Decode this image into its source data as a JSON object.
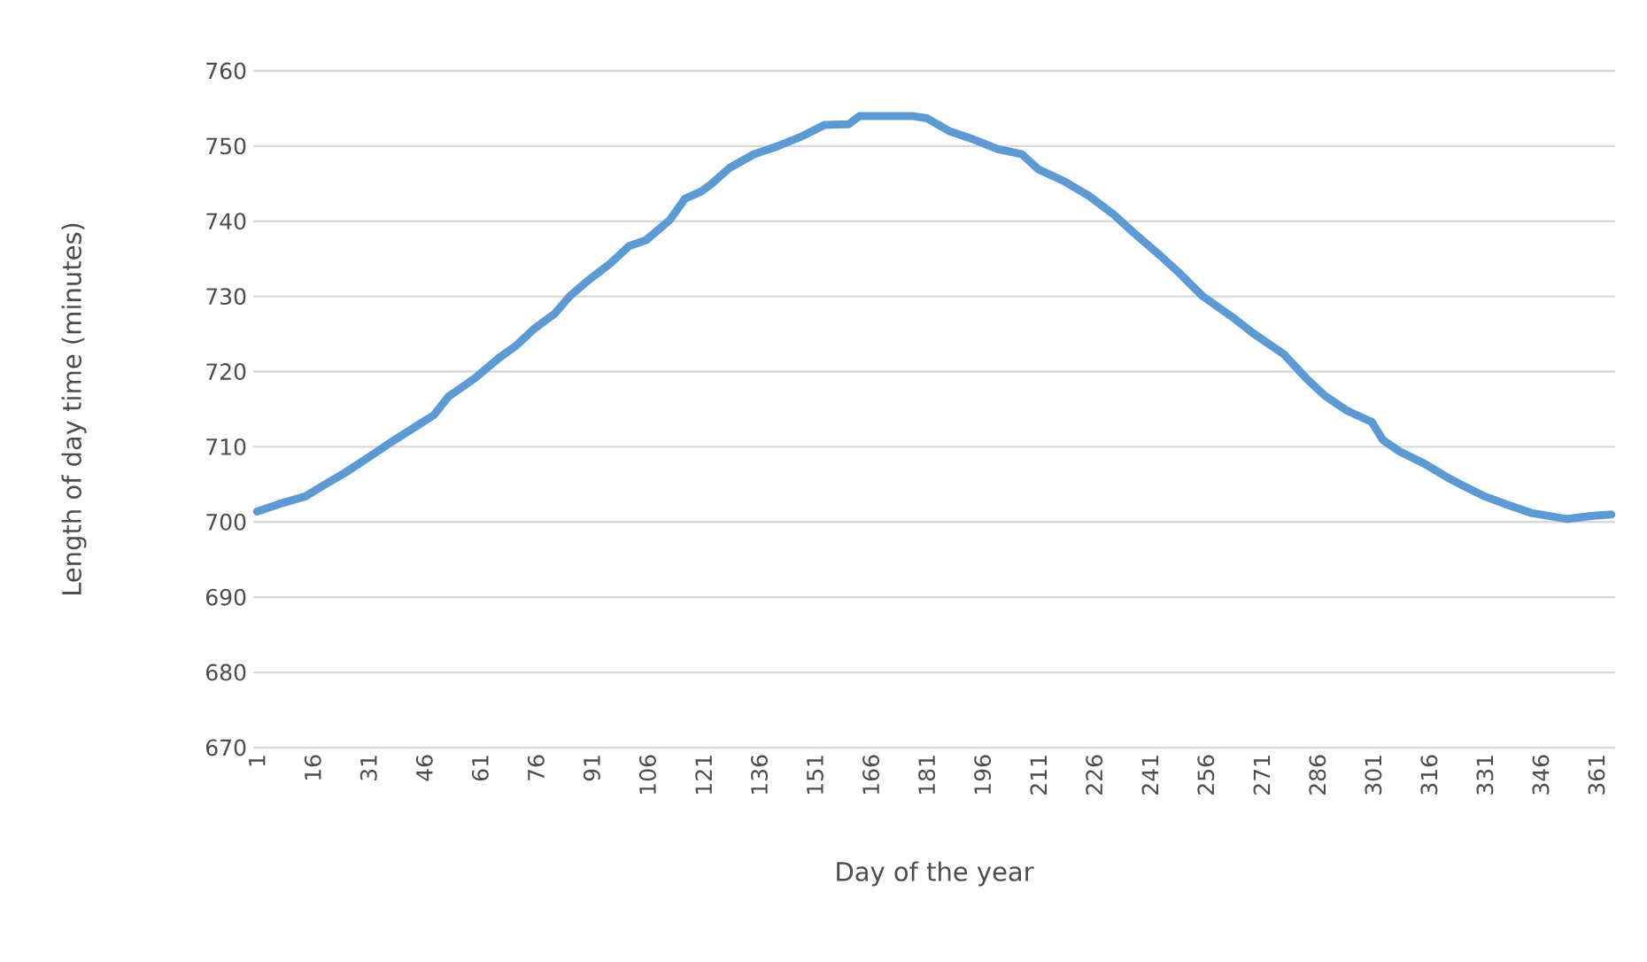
{
  "chart_data": {
    "type": "line",
    "xlabel": "Day of the year",
    "ylabel": "Length of day time (minutes)",
    "x": [
      1,
      7,
      14,
      19,
      24.5,
      31,
      37,
      44,
      48.5,
      52.5,
      59.5,
      66,
      70.5,
      75.5,
      81,
      85,
      89.7,
      96,
      101,
      105.6,
      112,
      116,
      120.5,
      123,
      128,
      134.5,
      141,
      147,
      153.5,
      160,
      163,
      171,
      177,
      181,
      187,
      194,
      200,
      206.6,
      211,
      218,
      224.5,
      231,
      237,
      243.6,
      248.7,
      255,
      263,
      269,
      277,
      283,
      288,
      294,
      300.6,
      303.6,
      308,
      314.6,
      321,
      325.7,
      330.5,
      337,
      343.5,
      353,
      359.5,
      365
    ],
    "series": [
      {
        "color": "#5b9bd5",
        "values": [
          701.4,
          702.4,
          703.4,
          704.9,
          706.5,
          708.6,
          710.6,
          712.8,
          714.2,
          716.7,
          719.1,
          721.8,
          723.4,
          725.7,
          727.7,
          730.0,
          732.0,
          734.4,
          736.7,
          737.5,
          740.2,
          743.0,
          744.0,
          744.9,
          747.1,
          748.9,
          750.0,
          751.2,
          752.8,
          752.9,
          754.0,
          754.0,
          754.0,
          753.7,
          752.0,
          750.8,
          749.6,
          748.9,
          746.9,
          745.3,
          743.4,
          741.0,
          738.3,
          735.5,
          733.2,
          730.1,
          727.3,
          725.0,
          722.3,
          719.1,
          716.8,
          714.8,
          713.3,
          710.9,
          709.4,
          707.8,
          705.9,
          704.7,
          703.5,
          702.3,
          701.2,
          700.4,
          700.8,
          701.0
        ]
      }
    ],
    "xlim": [
      0,
      366
    ],
    "xticks": [
      1,
      16,
      31,
      46,
      61,
      76,
      91,
      106,
      121,
      136,
      151,
      166,
      181,
      196,
      211,
      226,
      241,
      256,
      271,
      286,
      301,
      316,
      331,
      346,
      361
    ],
    "ylim": [
      670,
      760
    ],
    "yticks": [
      670,
      680,
      690,
      700,
      710,
      720,
      730,
      740,
      750,
      760
    ],
    "grid": "y",
    "line_style": "solid"
  }
}
